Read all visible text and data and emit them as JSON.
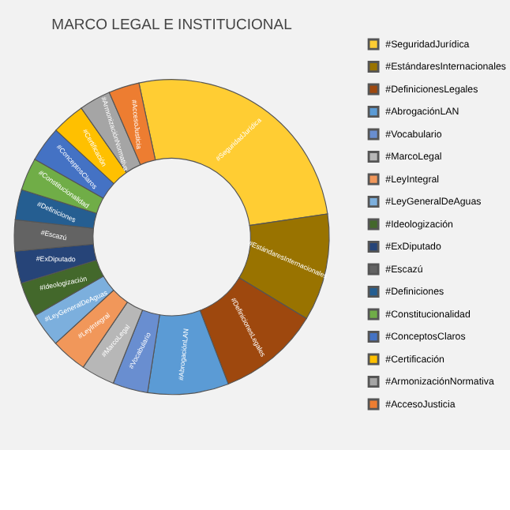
{
  "chart_data": {
    "type": "donut",
    "title": "MARCO LEGAL E INSTITUCIONAL",
    "categories": [
      "#SeguridadJurídica",
      "#EstándaresInternacionales",
      "#DefinicionesLegales",
      "#AbrogaciónLAN",
      "#Vocabulario",
      "#MarcoLegal",
      "#LeyIntegral",
      "#LeyGeneralDeAguas",
      "#Ideologización",
      "#ExDiputado",
      "#Escazú",
      "#Definiciones",
      "#Constitucionalidad",
      "#ConceptosClaros",
      "#Certificación",
      "#ArmonizaciónNormativa",
      "#AccesoJusticia"
    ],
    "values": [
      26,
      11,
      10.5,
      8.3,
      3.6,
      3.45,
      3.7,
      3.5,
      3.55,
      3.3,
      3.2,
      3.1,
      3.35,
      3.65,
      3.4,
      3.25,
      3.15
    ],
    "colors": [
      "#FFCD33",
      "#997300",
      "#9E480E",
      "#5B9BD5",
      "#698ED0",
      "#B7B7B7",
      "#F1975A",
      "#7CAFDD",
      "#43682B",
      "#264478",
      "#636363",
      "#255E91",
      "#70AD47",
      "#4472C4",
      "#FFC000",
      "#A5A5A5",
      "#ED7D31"
    ],
    "legend": "right"
  }
}
